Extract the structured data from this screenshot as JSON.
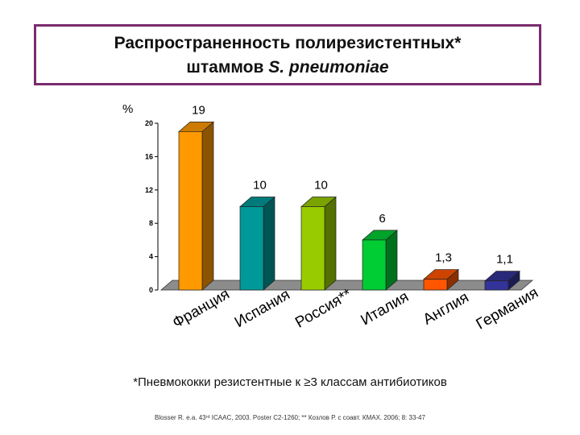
{
  "title": {
    "line1": "Распространенность полирезистентных*",
    "line2_prefix": "штаммов ",
    "line2_italic": "S. pneumoniae"
  },
  "chart_data": {
    "type": "bar",
    "ylabel": "%",
    "ylim": [
      0,
      20
    ],
    "yticks": [
      "0",
      "4",
      "8",
      "12",
      "16",
      "20"
    ],
    "categories": [
      "Франция",
      "Испания",
      "Россия**",
      "Италия",
      "Англия",
      "Германия"
    ],
    "values": [
      19,
      10,
      10,
      6,
      1.3,
      1.1
    ],
    "data_labels": [
      "19",
      "10",
      "10",
      "6",
      "1,3",
      "1,1"
    ],
    "colors": [
      "#ff9900",
      "#009999",
      "#99cc00",
      "#00cc33",
      "#ff5500",
      "#333399"
    ],
    "three_d": true,
    "grid": false,
    "legend": "none"
  },
  "footnote": "*Пневмококки резистентные к ≥3 классам антибиотиков",
  "source": "Blosser R. e.a. 43ʳᵈ ICAAC, 2003. Poster C2-1260; ** Козлов Р. с соавт. КМАХ. 2006; 8: 33-47"
}
